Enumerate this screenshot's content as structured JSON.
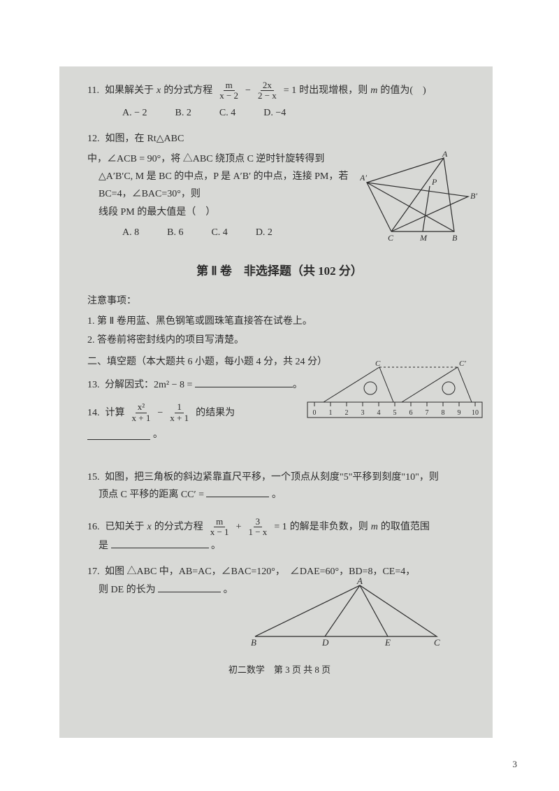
{
  "background_color": "#ffffff",
  "paper_color": "#d8d9d6",
  "text_color": "#2b2b2b",
  "q11": {
    "number": "11.",
    "text_a": "如果解关于",
    "var": "x",
    "text_b": "的分式方程",
    "frac1_num": "m",
    "frac1_den": "x − 2",
    "minus": "−",
    "frac2_num": "2x",
    "frac2_den": "2 − x",
    "eq": "= 1",
    "text_c": "时出现增根，则",
    "var2": "m",
    "text_d": "的值为(　)",
    "choices": {
      "A": "A.  − 2",
      "B": "B.  2",
      "C": "C.  4",
      "D": "D.  −4"
    }
  },
  "q12": {
    "number": "12.",
    "l1_a": "如图，在",
    "rt": "Rt△ABC",
    "l1_b": "中，∠ACB = 90°，将 △ABC 绕顶点 C 逆时针旋转得到",
    "l2": "△A′B′C, M 是 BC 的中点，P 是 A′B′ 的中点，连接 PM，若 BC=4，∠BAC=30°，则",
    "l3": "线段 PM 的最大值是（　）",
    "choices": {
      "A": "A. 8",
      "B": "B. 6",
      "C": "C. 4",
      "D": "D. 2"
    },
    "diagram": {
      "stroke": "#2b2b2b",
      "labels": {
        "A": "A",
        "Ap": "A′",
        "P": "P",
        "Bp": "B′",
        "C": "C",
        "M": "M",
        "B": "B"
      }
    }
  },
  "section": {
    "title": "第 Ⅱ 卷　非选择题（共 102 分）",
    "notice_h": "注意事项：",
    "notice_1": "1. 第 Ⅱ 卷用蓝、黑色钢笔或圆珠笔直接答在试卷上。",
    "notice_2": "2. 答卷前将密封线内的项目写清楚。",
    "sub": "二、填空题（本大题共 6 小题，每小题 4 分，共 24 分）"
  },
  "q13": {
    "number": "13.",
    "text": "分解因式：2m² − 8 ="
  },
  "q14": {
    "number": "14.",
    "text_a": "计算",
    "f1n": "x²",
    "f1d": "x + 1",
    "minus": "−",
    "f2n": "1",
    "f2d": "x + 1",
    "text_b": "的结果为"
  },
  "q15": {
    "number": "15.",
    "l1": "如图，把三角板的斜边紧靠直尺平移，一个顶点从刻度\"5\"平移到刻度\"10\"，则",
    "l2_a": "顶点 C 平移的距离",
    "cc": "CC′ =",
    "period": "。",
    "ruler": {
      "ticks": [
        "0",
        "1",
        "2",
        "3",
        "4",
        "5",
        "6",
        "7",
        "8",
        "9",
        "10"
      ],
      "labelC": "C",
      "labelCp": "C′",
      "stroke": "#2b2b2b"
    }
  },
  "q16": {
    "number": "16.",
    "text_a": "已知关于",
    "var": "x",
    "text_b": "的分式方程",
    "f1n": "m",
    "f1d": "x − 1",
    "plus": "+",
    "f2n": "3",
    "f2d": "1 − x",
    "eq": "= 1",
    "text_c": "的解是非负数，则",
    "var2": "m",
    "text_d": "的取值范围",
    "l2": "是",
    "period": "。"
  },
  "q17": {
    "number": "17.",
    "l1": "如图 △ABC 中，AB=AC，∠BAC=120°，　∠DAE=60°，BD=8，CE=4，",
    "l2_a": "则 DE 的长为",
    "period": "。",
    "diagram": {
      "A": "A",
      "B": "B",
      "D": "D",
      "E": "E",
      "C": "C",
      "stroke": "#2b2b2b"
    }
  },
  "footer": "初二数学　第 3 页 共 8 页",
  "page_number": "3"
}
